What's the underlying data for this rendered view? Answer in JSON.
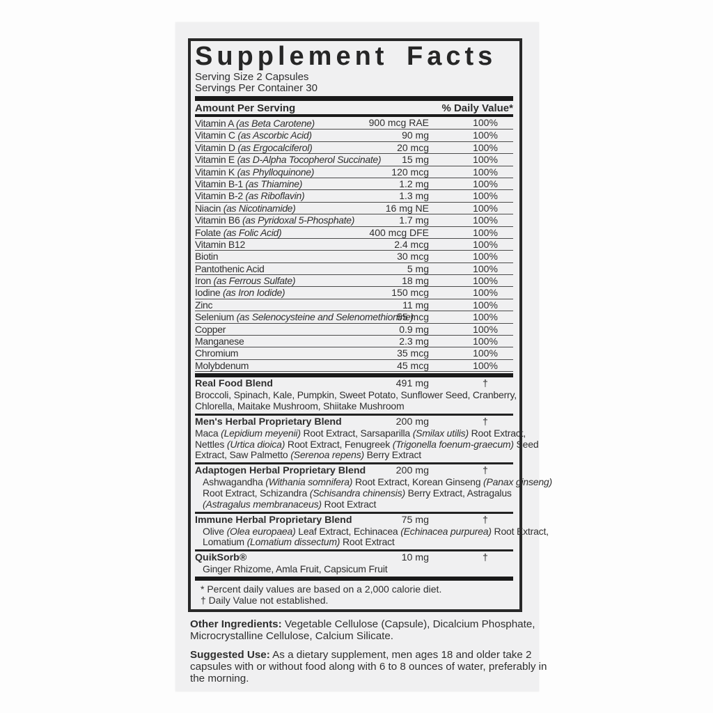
{
  "colors": {
    "ink": "#2a2a2a",
    "paper": "#f0f0f1",
    "background": "#fdfdfd"
  },
  "panel": {
    "title": "Supplement Facts",
    "serving_size": "Serving Size 2 Capsules",
    "servings_per_container": "Servings Per Container 30",
    "header": {
      "amount": "Amount Per Serving",
      "daily_value": "% Daily Value*"
    },
    "nutrients": [
      {
        "name": "Vitamin A *(as Beta Carotene)*",
        "amount": "900 mcg RAE",
        "dv": "100%"
      },
      {
        "name": "Vitamin C *(as Ascorbic Acid)*",
        "amount": "90 mg",
        "dv": "100%"
      },
      {
        "name": "Vitamin D *(as Ergocalciferol)*",
        "amount": "20 mcg",
        "dv": "100%"
      },
      {
        "name": "Vitamin E *(as D-Alpha Tocopherol Succinate)*",
        "amount": "15 mg",
        "dv": "100%"
      },
      {
        "name": "Vitamin K *(as Phylloquinone)*",
        "amount": "120 mcg",
        "dv": "100%"
      },
      {
        "name": "Vitamin B-1 *(as Thiamine)*",
        "amount": "1.2 mg",
        "dv": "100%"
      },
      {
        "name": "Vitamin B-2 *(as Riboflavin)*",
        "amount": "1.3 mg",
        "dv": "100%"
      },
      {
        "name": "Niacin *(as Nicotinamide)*",
        "amount": "16 mg NE",
        "dv": "100%"
      },
      {
        "name": "Vitamin B6 *(as Pyridoxal 5-Phosphate)*",
        "amount": "1.7 mg",
        "dv": "100%"
      },
      {
        "name": "Folate *(as Folic Acid)*",
        "amount": "400 mcg DFE",
        "dv": "100%"
      },
      {
        "name": "Vitamin B12",
        "amount": "2.4 mcg",
        "dv": "100%"
      },
      {
        "name": "Biotin",
        "amount": "30 mcg",
        "dv": "100%"
      },
      {
        "name": "Pantothenic Acid",
        "amount": "5 mg",
        "dv": "100%"
      },
      {
        "name": "Iron *(as Ferrous Sulfate)*",
        "amount": "18 mg",
        "dv": "100%"
      },
      {
        "name": "Iodine *(as Iron Iodide)*",
        "amount": "150 mcg",
        "dv": "100%"
      },
      {
        "name": "Zinc",
        "amount": "11 mg",
        "dv": "100%"
      },
      {
        "name": "Selenium *(as Selenocysteine and Selenomethionine)*",
        "amount": "55 mcg",
        "dv": "100%"
      },
      {
        "name": "Copper",
        "amount": "0.9 mg",
        "dv": "100%"
      },
      {
        "name": "Manganese",
        "amount": "2.3 mg",
        "dv": "100%"
      },
      {
        "name": "Chromium",
        "amount": "35 mcg",
        "dv": "100%"
      },
      {
        "name": "Molybdenum",
        "amount": "45 mcg",
        "dv": "100%"
      }
    ],
    "blends": [
      {
        "name": "Real Food Blend",
        "amount": "491 mg",
        "dv": "†",
        "indent": false,
        "ingredients": "Broccoli, Spinach, Kale, Pumpkin, Sweet Potato, Sunflower Seed, Cranberry,\nChlorella, Maitake Mushroom, Shiitake Mushroom"
      },
      {
        "name": "Men's Herbal Proprietary Blend",
        "amount": "200 mg",
        "dv": "†",
        "indent": false,
        "ingredients": "Maca *(Lepidium meyenii)* Root Extract, Sarsaparilla *(Smilax utilis)* Root Extract,\nNettles *(Urtica dioica)* Root Extract, Fenugreek *(Trigonella foenum-graecum)* Seed\nExtract, Saw Palmetto *(Serenoa repens)* Berry Extract"
      },
      {
        "name": "Adaptogen Herbal Proprietary Blend",
        "amount": "200 mg",
        "dv": "†",
        "indent": true,
        "ingredients": "Ashwagandha *(Withania somnifera)* Root Extract, Korean Ginseng *(Panax ginseng)*\nRoot Extract, Schizandra *(Schisandra chinensis)* Berry Extract, Astragalus\n*(Astragalus membranaceus)* Root Extract"
      },
      {
        "name": "Immune Herbal Proprietary Blend",
        "amount": "75 mg",
        "dv": "†",
        "indent": true,
        "ingredients": "Olive *(Olea europaea)* Leaf Extract, Echinacea *(Echinacea purpurea)* Root Extract,\nLomatium *(Lomatium dissectum)* Root Extract"
      },
      {
        "name": "QuikSorb®",
        "amount": "10 mg",
        "dv": "†",
        "indent": true,
        "ingredients": "Ginger Rhizome, Amla Fruit, Capsicum Fruit"
      }
    ],
    "footnotes": [
      "* Percent daily values are based on a 2,000 calorie diet.",
      "† Daily Value not established."
    ]
  },
  "other_ingredients": {
    "label": "Other Ingredients:",
    "text": "Vegetable Cellulose (Capsule), Dicalcium Phosphate,\nMicrocrystalline Cellulose, Calcium Silicate."
  },
  "suggested_use": {
    "label": "Suggested Use:",
    "text": "As a dietary supplement, men ages 18 and older take 2\ncapsules with or without food along with 6 to 8 ounces of water, preferably in\nthe morning."
  }
}
